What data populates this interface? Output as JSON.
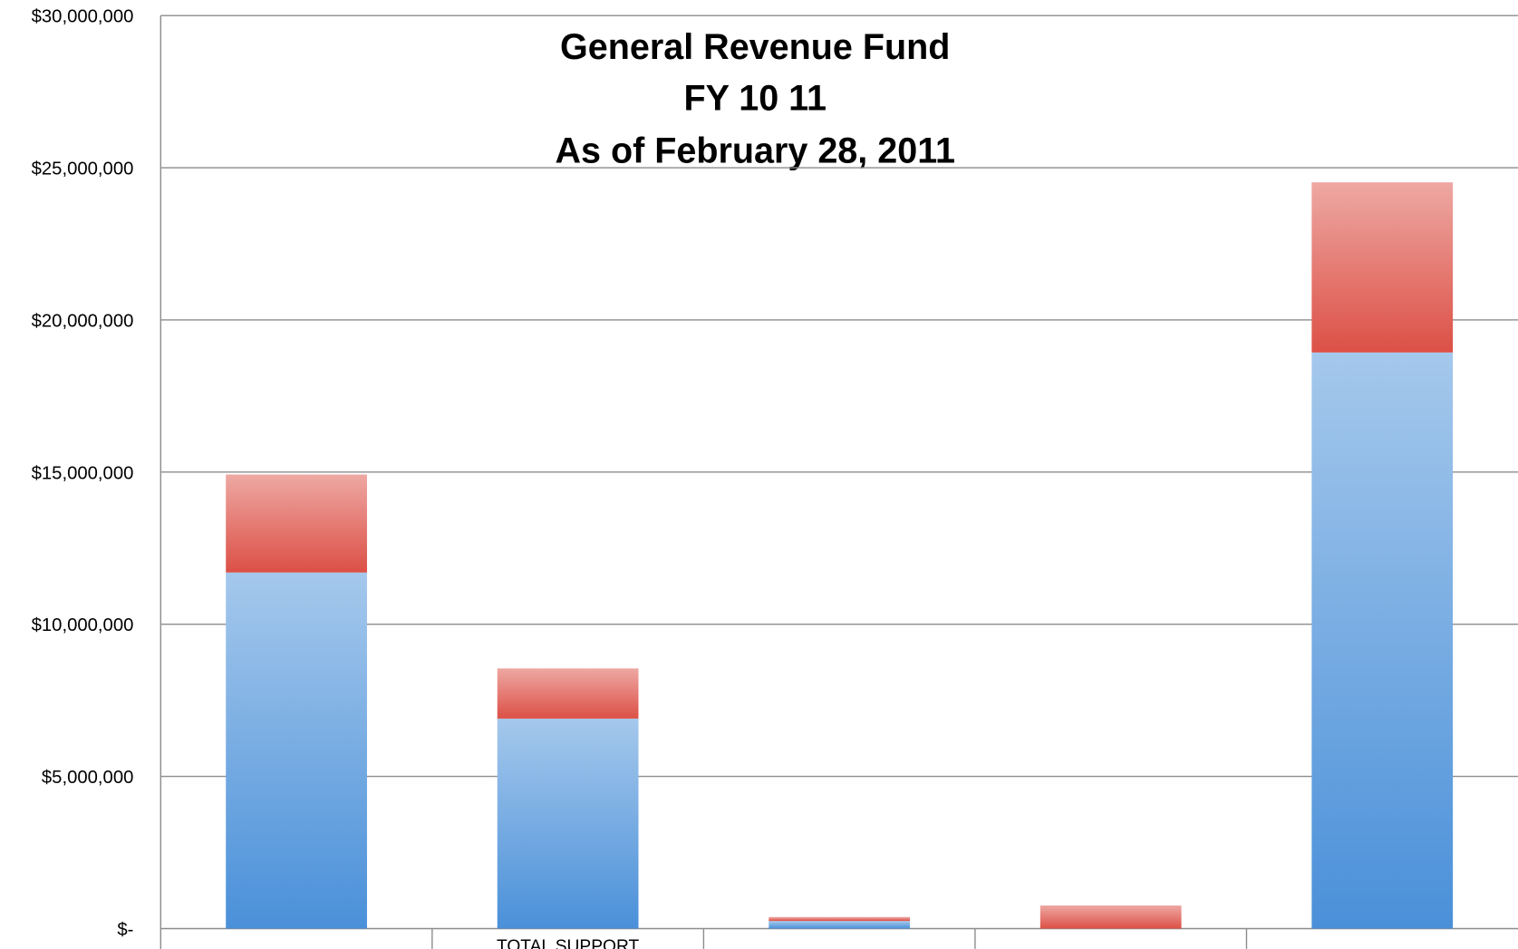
{
  "chart_data": {
    "type": "stacked_bar",
    "title": [
      "General Revenue Fund",
      "FY 10 11",
      "As of February 28, 2011"
    ],
    "categories": [
      null,
      "TOTAL SUPPORT",
      null,
      null,
      null
    ],
    "series": [
      {
        "color": "#4a90d9",
        "values": [
          11700000,
          6900000,
          250000,
          0,
          18930000
        ]
      },
      {
        "color": "#dc5046",
        "values": [
          3220000,
          1650000,
          130000,
          760000,
          5590000
        ]
      }
    ],
    "ylim": [
      0,
      30000000
    ],
    "yticks": [
      {
        "value": 0,
        "label": "$-"
      },
      {
        "value": 5000000,
        "label": "$5,000,000"
      },
      {
        "value": 10000000,
        "label": "$10,000,000"
      },
      {
        "value": 15000000,
        "label": "$15,000,000"
      },
      {
        "value": 20000000,
        "label": "$20,000,000"
      },
      {
        "value": 25000000,
        "label": "$25,000,000"
      },
      {
        "value": 30000000,
        "label": "$30,000,000"
      }
    ],
    "grid": true
  }
}
